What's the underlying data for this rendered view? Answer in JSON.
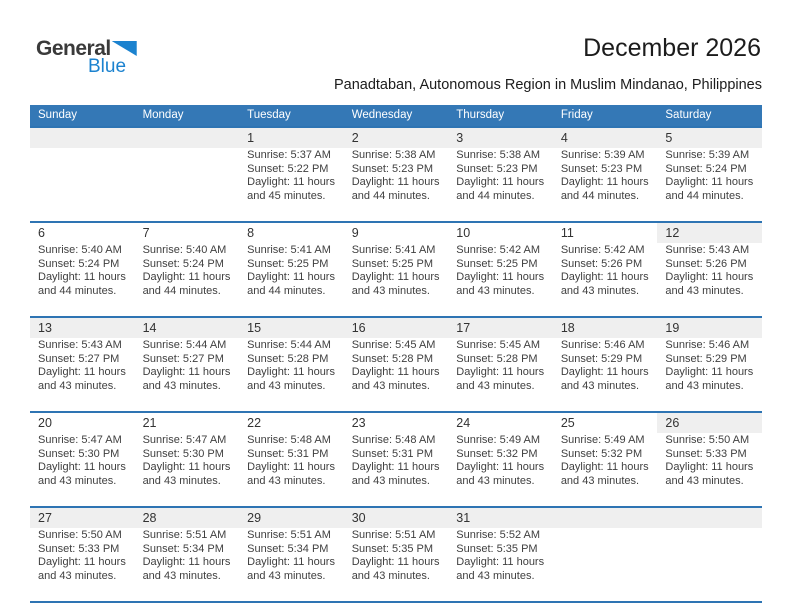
{
  "logo": {
    "general": "General",
    "blue": "Blue"
  },
  "title": "December 2026",
  "subtitle": "Panadtaban, Autonomous Region in Muslim Mindanao, Philippines",
  "colors": {
    "header_bg": "#3478b6",
    "row_line": "#2e74b3",
    "band_gray": "#efefef",
    "logo_blue": "#1b82cf"
  },
  "weekday_headers": [
    "Sunday",
    "Monday",
    "Tuesday",
    "Wednesday",
    "Thursday",
    "Friday",
    "Saturday"
  ],
  "weeks": [
    {
      "band": "full",
      "cells": [
        {
          "day": ""
        },
        {
          "day": ""
        },
        {
          "day": "1",
          "sunrise": "Sunrise: 5:37 AM",
          "sunset": "Sunset: 5:22 PM",
          "daylight1": "Daylight: 11 hours",
          "daylight2": "and 45 minutes."
        },
        {
          "day": "2",
          "sunrise": "Sunrise: 5:38 AM",
          "sunset": "Sunset: 5:23 PM",
          "daylight1": "Daylight: 11 hours",
          "daylight2": "and 44 minutes."
        },
        {
          "day": "3",
          "sunrise": "Sunrise: 5:38 AM",
          "sunset": "Sunset: 5:23 PM",
          "daylight1": "Daylight: 11 hours",
          "daylight2": "and 44 minutes."
        },
        {
          "day": "4",
          "sunrise": "Sunrise: 5:39 AM",
          "sunset": "Sunset: 5:23 PM",
          "daylight1": "Daylight: 11 hours",
          "daylight2": "and 44 minutes."
        },
        {
          "day": "5",
          "sunrise": "Sunrise: 5:39 AM",
          "sunset": "Sunset: 5:24 PM",
          "daylight1": "Daylight: 11 hours",
          "daylight2": "and 44 minutes."
        }
      ]
    },
    {
      "band": "sat",
      "cells": [
        {
          "day": "6",
          "sunrise": "Sunrise: 5:40 AM",
          "sunset": "Sunset: 5:24 PM",
          "daylight1": "Daylight: 11 hours",
          "daylight2": "and 44 minutes."
        },
        {
          "day": "7",
          "sunrise": "Sunrise: 5:40 AM",
          "sunset": "Sunset: 5:24 PM",
          "daylight1": "Daylight: 11 hours",
          "daylight2": "and 44 minutes."
        },
        {
          "day": "8",
          "sunrise": "Sunrise: 5:41 AM",
          "sunset": "Sunset: 5:25 PM",
          "daylight1": "Daylight: 11 hours",
          "daylight2": "and 44 minutes."
        },
        {
          "day": "9",
          "sunrise": "Sunrise: 5:41 AM",
          "sunset": "Sunset: 5:25 PM",
          "daylight1": "Daylight: 11 hours",
          "daylight2": "and 43 minutes."
        },
        {
          "day": "10",
          "sunrise": "Sunrise: 5:42 AM",
          "sunset": "Sunset: 5:25 PM",
          "daylight1": "Daylight: 11 hours",
          "daylight2": "and 43 minutes."
        },
        {
          "day": "11",
          "sunrise": "Sunrise: 5:42 AM",
          "sunset": "Sunset: 5:26 PM",
          "daylight1": "Daylight: 11 hours",
          "daylight2": "and 43 minutes."
        },
        {
          "day": "12",
          "sunrise": "Sunrise: 5:43 AM",
          "sunset": "Sunset: 5:26 PM",
          "daylight1": "Daylight: 11 hours",
          "daylight2": "and 43 minutes."
        }
      ]
    },
    {
      "band": "full",
      "cells": [
        {
          "day": "13",
          "sunrise": "Sunrise: 5:43 AM",
          "sunset": "Sunset: 5:27 PM",
          "daylight1": "Daylight: 11 hours",
          "daylight2": "and 43 minutes."
        },
        {
          "day": "14",
          "sunrise": "Sunrise: 5:44 AM",
          "sunset": "Sunset: 5:27 PM",
          "daylight1": "Daylight: 11 hours",
          "daylight2": "and 43 minutes."
        },
        {
          "day": "15",
          "sunrise": "Sunrise: 5:44 AM",
          "sunset": "Sunset: 5:28 PM",
          "daylight1": "Daylight: 11 hours",
          "daylight2": "and 43 minutes."
        },
        {
          "day": "16",
          "sunrise": "Sunrise: 5:45 AM",
          "sunset": "Sunset: 5:28 PM",
          "daylight1": "Daylight: 11 hours",
          "daylight2": "and 43 minutes."
        },
        {
          "day": "17",
          "sunrise": "Sunrise: 5:45 AM",
          "sunset": "Sunset: 5:28 PM",
          "daylight1": "Daylight: 11 hours",
          "daylight2": "and 43 minutes."
        },
        {
          "day": "18",
          "sunrise": "Sunrise: 5:46 AM",
          "sunset": "Sunset: 5:29 PM",
          "daylight1": "Daylight: 11 hours",
          "daylight2": "and 43 minutes."
        },
        {
          "day": "19",
          "sunrise": "Sunrise: 5:46 AM",
          "sunset": "Sunset: 5:29 PM",
          "daylight1": "Daylight: 11 hours",
          "daylight2": "and 43 minutes."
        }
      ]
    },
    {
      "band": "sat",
      "cells": [
        {
          "day": "20",
          "sunrise": "Sunrise: 5:47 AM",
          "sunset": "Sunset: 5:30 PM",
          "daylight1": "Daylight: 11 hours",
          "daylight2": "and 43 minutes."
        },
        {
          "day": "21",
          "sunrise": "Sunrise: 5:47 AM",
          "sunset": "Sunset: 5:30 PM",
          "daylight1": "Daylight: 11 hours",
          "daylight2": "and 43 minutes."
        },
        {
          "day": "22",
          "sunrise": "Sunrise: 5:48 AM",
          "sunset": "Sunset: 5:31 PM",
          "daylight1": "Daylight: 11 hours",
          "daylight2": "and 43 minutes."
        },
        {
          "day": "23",
          "sunrise": "Sunrise: 5:48 AM",
          "sunset": "Sunset: 5:31 PM",
          "daylight1": "Daylight: 11 hours",
          "daylight2": "and 43 minutes."
        },
        {
          "day": "24",
          "sunrise": "Sunrise: 5:49 AM",
          "sunset": "Sunset: 5:32 PM",
          "daylight1": "Daylight: 11 hours",
          "daylight2": "and 43 minutes."
        },
        {
          "day": "25",
          "sunrise": "Sunrise: 5:49 AM",
          "sunset": "Sunset: 5:32 PM",
          "daylight1": "Daylight: 11 hours",
          "daylight2": "and 43 minutes."
        },
        {
          "day": "26",
          "sunrise": "Sunrise: 5:50 AM",
          "sunset": "Sunset: 5:33 PM",
          "daylight1": "Daylight: 11 hours",
          "daylight2": "and 43 minutes."
        }
      ]
    },
    {
      "band": "full",
      "cells": [
        {
          "day": "27",
          "sunrise": "Sunrise: 5:50 AM",
          "sunset": "Sunset: 5:33 PM",
          "daylight1": "Daylight: 11 hours",
          "daylight2": "and 43 minutes."
        },
        {
          "day": "28",
          "sunrise": "Sunrise: 5:51 AM",
          "sunset": "Sunset: 5:34 PM",
          "daylight1": "Daylight: 11 hours",
          "daylight2": "and 43 minutes."
        },
        {
          "day": "29",
          "sunrise": "Sunrise: 5:51 AM",
          "sunset": "Sunset: 5:34 PM",
          "daylight1": "Daylight: 11 hours",
          "daylight2": "and 43 minutes."
        },
        {
          "day": "30",
          "sunrise": "Sunrise: 5:51 AM",
          "sunset": "Sunset: 5:35 PM",
          "daylight1": "Daylight: 11 hours",
          "daylight2": "and 43 minutes."
        },
        {
          "day": "31",
          "sunrise": "Sunrise: 5:52 AM",
          "sunset": "Sunset: 5:35 PM",
          "daylight1": "Daylight: 11 hours",
          "daylight2": "and 43 minutes."
        },
        {
          "day": ""
        },
        {
          "day": ""
        }
      ]
    }
  ]
}
